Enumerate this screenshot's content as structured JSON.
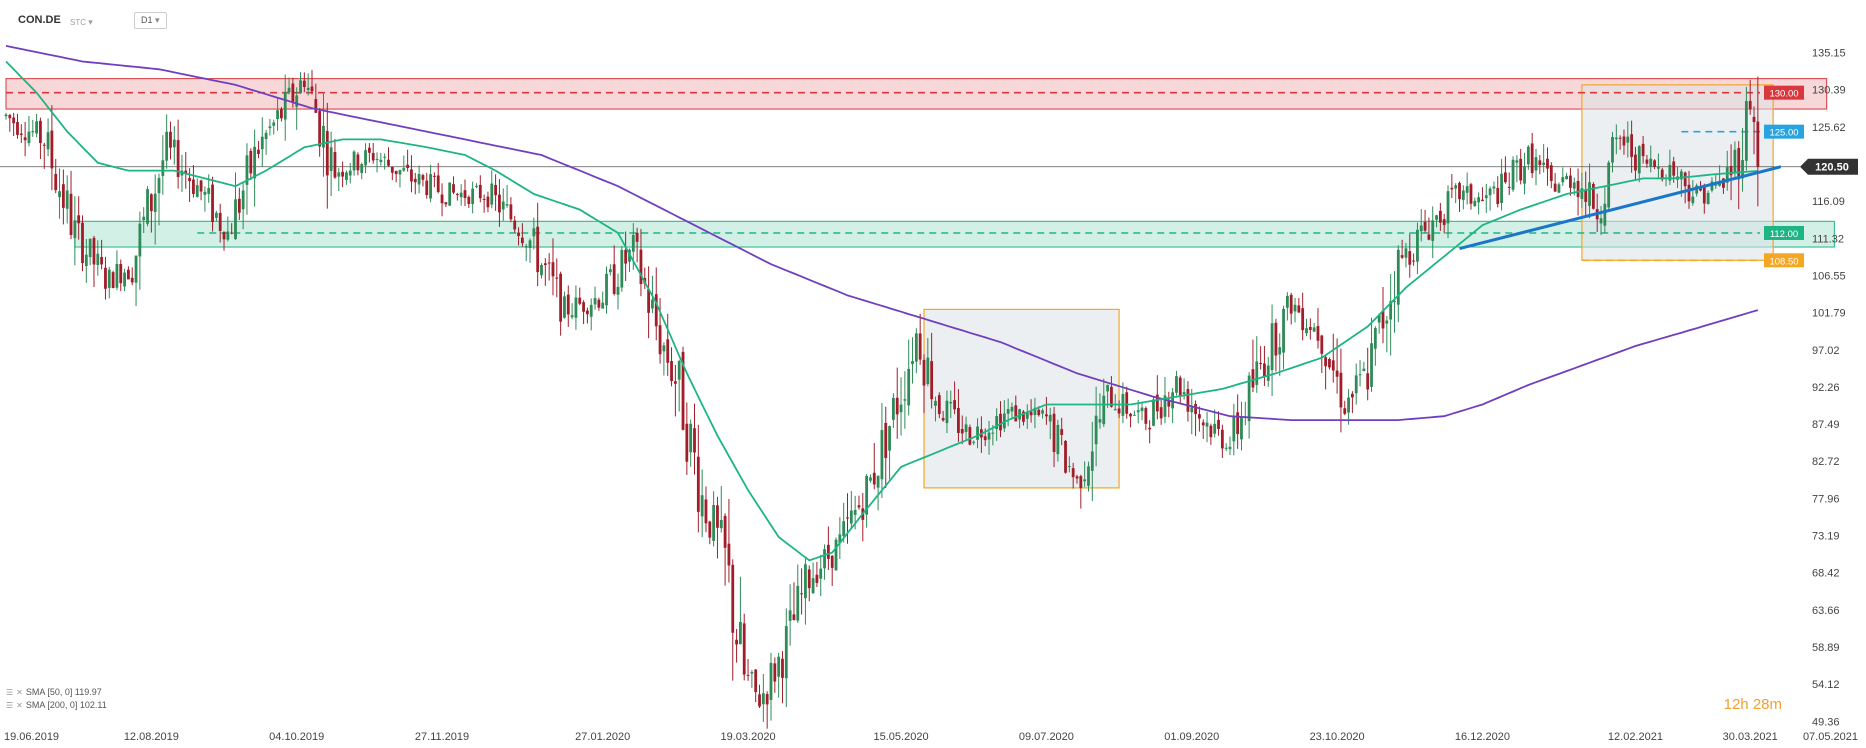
{
  "header": {
    "symbol": "CON.DE",
    "subtitle": "STC",
    "timeframe": "D1"
  },
  "indicators": [
    {
      "label": "SMA [50, 0] 119.97",
      "color": "#1db584"
    },
    {
      "label": "SMA [200, 0] 102.11",
      "color": "#6f3fbf"
    }
  ],
  "timer": "12h 28m",
  "colors": {
    "bull": "#2e8b57",
    "bear": "#a11d2a",
    "sma50": "#1db584",
    "sma200": "#6f3fbf",
    "resistance": "#d9373d",
    "support": "#1db584",
    "blue_level": "#29a3e0",
    "orange": "#f5a623",
    "trendline": "#1976c8",
    "last_price_bg": "#333333"
  },
  "chart_data": {
    "type": "candlestick",
    "ylim": [
      48.5,
      136.5
    ],
    "y_ticks": [
      135.15,
      130.39,
      125.62,
      116.09,
      111.32,
      106.55,
      101.79,
      97.02,
      92.26,
      87.49,
      82.72,
      77.96,
      73.19,
      68.42,
      63.66,
      58.89,
      54.12,
      49.36
    ],
    "x_ticks": [
      "19.06.2019",
      "12.08.2019",
      "04.10.2019",
      "27.11.2019",
      "27.01.2020",
      "19.03.2020",
      "15.05.2020",
      "09.07.2020",
      "01.09.2020",
      "23.10.2020",
      "16.12.2020",
      "12.02.2021",
      "30.03.2021",
      "07.05.2021"
    ],
    "x_tick_index": [
      0,
      38,
      76,
      114,
      156,
      194,
      234,
      272,
      310,
      348,
      386,
      426,
      456,
      484
    ],
    "last_price": 120.5,
    "price_path": [
      [
        0,
        127
      ],
      [
        10,
        124
      ],
      [
        18,
        112
      ],
      [
        26,
        106
      ],
      [
        33,
        108
      ],
      [
        42,
        123
      ],
      [
        50,
        118
      ],
      [
        58,
        112
      ],
      [
        66,
        123
      ],
      [
        73,
        128
      ],
      [
        78,
        132
      ],
      [
        86,
        120
      ],
      [
        96,
        122
      ],
      [
        106,
        119
      ],
      [
        116,
        117
      ],
      [
        126,
        117
      ],
      [
        136,
        112
      ],
      [
        146,
        102
      ],
      [
        156,
        104
      ],
      [
        164,
        110
      ],
      [
        170,
        100
      ],
      [
        176,
        92
      ],
      [
        182,
        78
      ],
      [
        188,
        70
      ],
      [
        193,
        55
      ],
      [
        197,
        52
      ],
      [
        203,
        58
      ],
      [
        210,
        68
      ],
      [
        218,
        72
      ],
      [
        226,
        80
      ],
      [
        234,
        92
      ],
      [
        238,
        99
      ],
      [
        244,
        90
      ],
      [
        252,
        86
      ],
      [
        262,
        89
      ],
      [
        272,
        88
      ],
      [
        280,
        80
      ],
      [
        288,
        91
      ],
      [
        298,
        88
      ],
      [
        306,
        93
      ],
      [
        313,
        88
      ],
      [
        320,
        85
      ],
      [
        328,
        95
      ],
      [
        336,
        103
      ],
      [
        344,
        99
      ],
      [
        350,
        90
      ],
      [
        356,
        94
      ],
      [
        364,
        108
      ],
      [
        372,
        113
      ],
      [
        380,
        117
      ],
      [
        386,
        116
      ],
      [
        392,
        118
      ],
      [
        398,
        122
      ],
      [
        404,
        118
      ],
      [
        410,
        119
      ],
      [
        416,
        115
      ],
      [
        422,
        124
      ],
      [
        428,
        121
      ],
      [
        436,
        120
      ],
      [
        442,
        117
      ],
      [
        448,
        118
      ],
      [
        452,
        121
      ],
      [
        454,
        125
      ],
      [
        456,
        130
      ],
      [
        458,
        120.5
      ]
    ],
    "sma50": [
      [
        0,
        134
      ],
      [
        8,
        130
      ],
      [
        16,
        125
      ],
      [
        24,
        121
      ],
      [
        32,
        120
      ],
      [
        44,
        120
      ],
      [
        52,
        119
      ],
      [
        60,
        118
      ],
      [
        68,
        120
      ],
      [
        78,
        123
      ],
      [
        88,
        124
      ],
      [
        98,
        124
      ],
      [
        110,
        123
      ],
      [
        120,
        122
      ],
      [
        128,
        120
      ],
      [
        138,
        117
      ],
      [
        150,
        115
      ],
      [
        160,
        112
      ],
      [
        170,
        103
      ],
      [
        178,
        94
      ],
      [
        186,
        86
      ],
      [
        194,
        79
      ],
      [
        202,
        73
      ],
      [
        210,
        70
      ],
      [
        216,
        71
      ],
      [
        224,
        76
      ],
      [
        234,
        82
      ],
      [
        244,
        84
      ],
      [
        254,
        86
      ],
      [
        262,
        88
      ],
      [
        272,
        90
      ],
      [
        282,
        90
      ],
      [
        294,
        90
      ],
      [
        306,
        91
      ],
      [
        318,
        92
      ],
      [
        332,
        94
      ],
      [
        344,
        96
      ],
      [
        356,
        100
      ],
      [
        366,
        105
      ],
      [
        376,
        109
      ],
      [
        386,
        113
      ],
      [
        396,
        115
      ],
      [
        408,
        117
      ],
      [
        418,
        118
      ],
      [
        428,
        119
      ],
      [
        436,
        119
      ],
      [
        446,
        119.5
      ],
      [
        458,
        119.97
      ]
    ],
    "sma200": [
      [
        0,
        136
      ],
      [
        10,
        135
      ],
      [
        20,
        134
      ],
      [
        40,
        133
      ],
      [
        60,
        131
      ],
      [
        80,
        128
      ],
      [
        100,
        126
      ],
      [
        120,
        124
      ],
      [
        140,
        122
      ],
      [
        160,
        118
      ],
      [
        180,
        113
      ],
      [
        200,
        108
      ],
      [
        220,
        104
      ],
      [
        240,
        101
      ],
      [
        260,
        98
      ],
      [
        280,
        94
      ],
      [
        300,
        91
      ],
      [
        320,
        88.5
      ],
      [
        336,
        88
      ],
      [
        350,
        88
      ],
      [
        364,
        88
      ],
      [
        376,
        88.5
      ],
      [
        386,
        90
      ],
      [
        398,
        92.5
      ],
      [
        412,
        95
      ],
      [
        426,
        97.5
      ],
      [
        440,
        99.5
      ],
      [
        458,
        102.11
      ]
    ],
    "levels": [
      {
        "label": "130.00",
        "value": 130.0,
        "color": "#d9373d"
      },
      {
        "label": "125.00",
        "value": 125.0,
        "color": "#29a3e0"
      },
      {
        "label": "112.00",
        "value": 112.0,
        "color": "#1db584"
      },
      {
        "label": "108.50",
        "value": 108.5,
        "color": "#f5a623"
      }
    ],
    "zones": [
      {
        "name": "resistance-zone",
        "x": [
          0,
          476
        ],
        "y": [
          127.9,
          131.8
        ],
        "color": "#d9373d"
      },
      {
        "name": "support-zone",
        "x": [
          18,
          478
        ],
        "y": [
          110.2,
          113.5
        ],
        "color": "#1db584"
      }
    ],
    "boxes": [
      {
        "name": "consolidation-box-2020",
        "x": [
          240,
          291
        ],
        "y": [
          79.3,
          102.2
        ]
      },
      {
        "name": "consolidation-box-2021",
        "x": [
          412,
          462
        ],
        "y": [
          108.5,
          131.0
        ]
      }
    ],
    "trendline": [
      [
        380,
        110
      ],
      [
        464,
        120.5
      ]
    ]
  }
}
